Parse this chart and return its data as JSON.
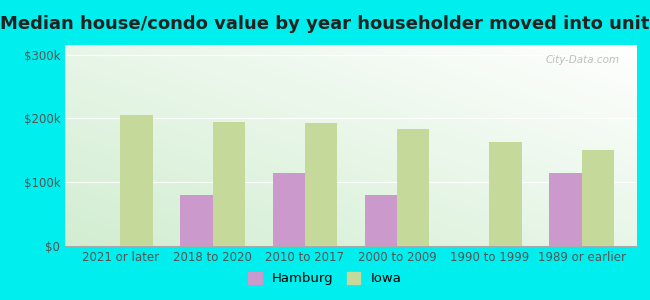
{
  "title": "Median house/condo value by year householder moved into unit",
  "categories": [
    "2021 or later",
    "2018 to 2020",
    "2010 to 2017",
    "2000 to 2009",
    "1990 to 1999",
    "1989 or earlier"
  ],
  "hamburg_values": [
    null,
    80000,
    115000,
    80000,
    null,
    115000
  ],
  "iowa_values": [
    205000,
    195000,
    193000,
    183000,
    163000,
    150000
  ],
  "hamburg_color": "#cc99cc",
  "iowa_color": "#c5d99a",
  "background_outer": "#00eeee",
  "yticks": [
    0,
    100000,
    200000,
    300000
  ],
  "ytick_labels": [
    "$0",
    "$100k",
    "$200k",
    "$300k"
  ],
  "ylim": [
    0,
    315000
  ],
  "bar_width": 0.35,
  "legend_hamburg": "Hamburg",
  "legend_iowa": "Iowa",
  "watermark": "City-Data.com",
  "title_fontsize": 13,
  "tick_fontsize": 8.5,
  "legend_fontsize": 9.5
}
